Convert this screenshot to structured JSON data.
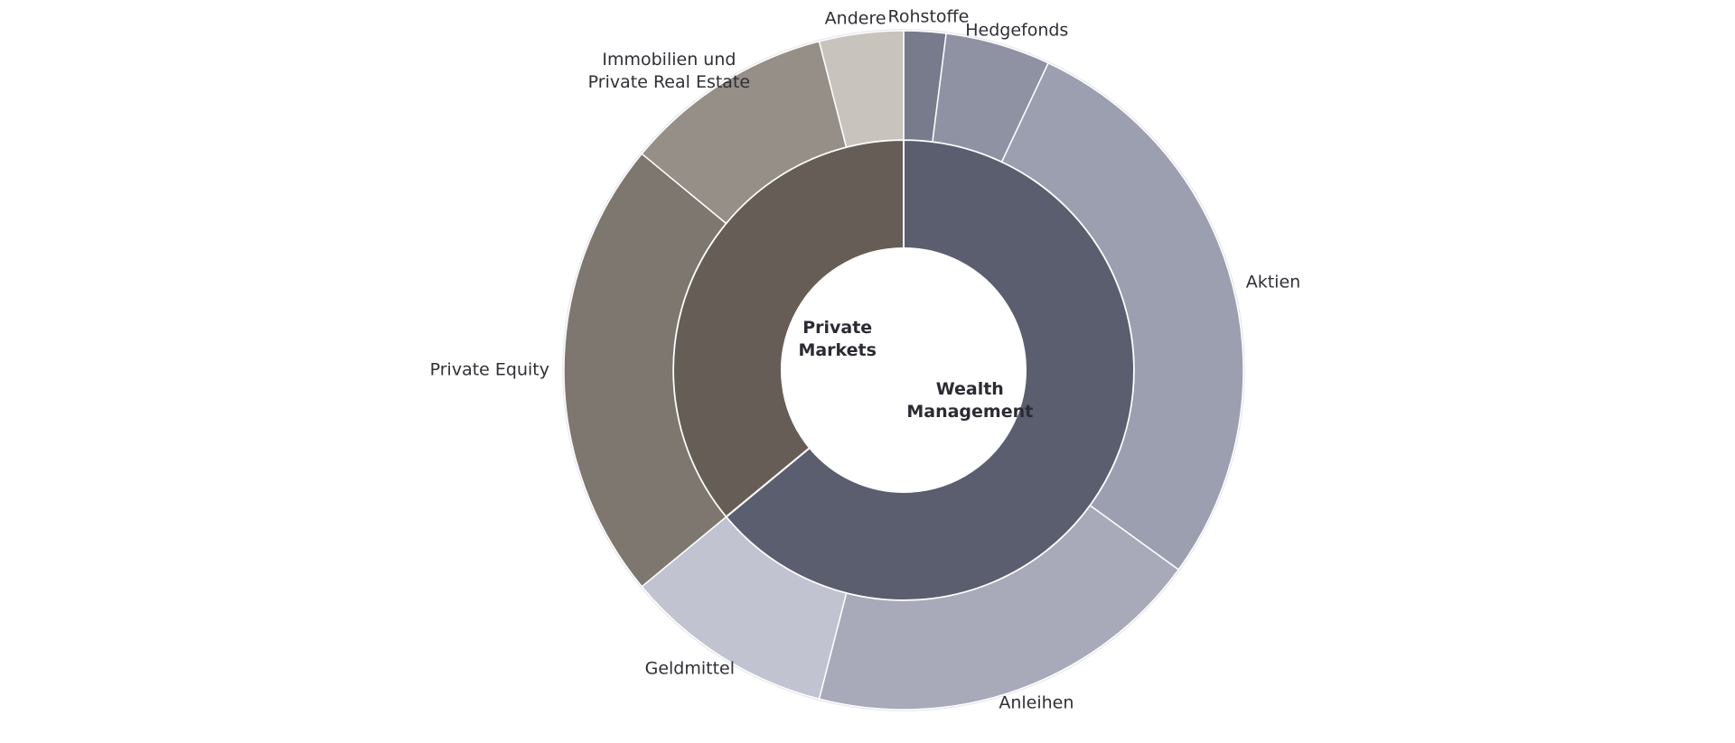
{
  "chart_data": {
    "type": "sunburst",
    "groups": [
      {
        "name": "Wealth Management",
        "color": "#5a5e6e",
        "value": 64,
        "children": [
          {
            "name": "Rohstoffe",
            "color": "#777b8c",
            "value": 2
          },
          {
            "name": "Hedgefonds",
            "color": "#8f92a3",
            "value": 5
          },
          {
            "name": "Aktien",
            "color": "#9c9fb0",
            "value": 28
          },
          {
            "name": "Anleihen",
            "color": "#a8aaba",
            "value": 19
          },
          {
            "name": "Geldmittel",
            "color": "#c1c3d1",
            "value": 10
          }
        ]
      },
      {
        "name": "Private Markets",
        "color": "#665e56",
        "value": 36,
        "children": [
          {
            "name": "Private Equity",
            "color": "#7e7770",
            "value": 22
          },
          {
            "name": "Immobilien und Private Real Estate",
            "color": "#968f88",
            "value": 10
          },
          {
            "name": "Andere",
            "color": "#c9c3be",
            "value": 4
          }
        ]
      }
    ]
  }
}
